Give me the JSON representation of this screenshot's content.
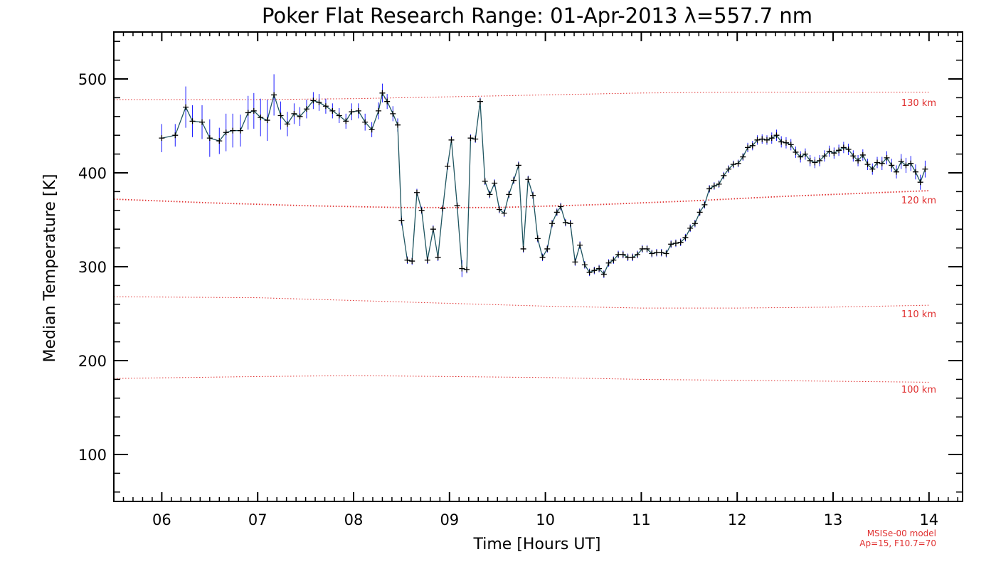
{
  "chart_data": {
    "type": "line",
    "title": "Poker Flat Research Range: 01-Apr-2013 λ=557.7 nm",
    "xlabel": "Time [Hours UT]",
    "ylabel": "Median Temperature [K]",
    "xlim": [
      5.5,
      14.35
    ],
    "ylim": [
      50,
      550
    ],
    "xticks": [
      6,
      7,
      8,
      9,
      10,
      11,
      12,
      13,
      14
    ],
    "xtick_labels": [
      "06",
      "07",
      "08",
      "09",
      "10",
      "11",
      "12",
      "13",
      "14"
    ],
    "yticks": [
      100,
      200,
      300,
      400,
      500
    ],
    "ytick_labels": [
      "100",
      "200",
      "300",
      "400",
      "500"
    ],
    "series": [
      {
        "name": "Median temperature",
        "color": "#000000",
        "error_color": "#1a1aff",
        "x": [
          6.0,
          6.14,
          6.25,
          6.32,
          6.42,
          6.5,
          6.6,
          6.67,
          6.74,
          6.82,
          6.9,
          6.96,
          7.03,
          7.1,
          7.17,
          7.24,
          7.31,
          7.38,
          7.44,
          7.51,
          7.58,
          7.64,
          7.71,
          7.78,
          7.85,
          7.92,
          7.98,
          8.05,
          8.12,
          8.19,
          8.26,
          8.3,
          8.35,
          8.41,
          8.46,
          8.5,
          8.56,
          8.61,
          8.66,
          8.71,
          8.77,
          8.83,
          8.88,
          8.93,
          8.98,
          9.02,
          9.08,
          9.13,
          9.18,
          9.22,
          9.27,
          9.32,
          9.37,
          9.42,
          9.47,
          9.52,
          9.57,
          9.62,
          9.67,
          9.72,
          9.77,
          9.82,
          9.87,
          9.92,
          9.97,
          10.02,
          10.07,
          10.12,
          10.16,
          10.21,
          10.26,
          10.31,
          10.36,
          10.41,
          10.46,
          10.51,
          10.56,
          10.61,
          10.66,
          10.71,
          10.76,
          10.81,
          10.86,
          10.91,
          10.96,
          11.01,
          11.06,
          11.11,
          11.16,
          11.21,
          11.26,
          11.31,
          11.36,
          11.41,
          11.46,
          11.51,
          11.56,
          11.61,
          11.66,
          11.71,
          11.76,
          11.81,
          11.86,
          11.91,
          11.96,
          12.01,
          12.06,
          12.11,
          12.16,
          12.21,
          12.26,
          12.31,
          12.36,
          12.41,
          12.46,
          12.51,
          12.56,
          12.61,
          12.66,
          12.71,
          12.76,
          12.81,
          12.86,
          12.91,
          12.96,
          13.01,
          13.06,
          13.11,
          13.16,
          13.21,
          13.26,
          13.31,
          13.36,
          13.41,
          13.46,
          13.51,
          13.56,
          13.61,
          13.66,
          13.71,
          13.76,
          13.81,
          13.86,
          13.91,
          13.96
        ],
        "y": [
          437,
          440,
          470,
          455,
          454,
          437,
          434,
          443,
          445,
          445,
          464,
          466,
          459,
          456,
          483,
          461,
          452,
          463,
          460,
          468,
          477,
          475,
          471,
          466,
          461,
          455,
          465,
          466,
          454,
          446,
          466,
          485,
          476,
          463,
          451,
          349,
          307,
          306,
          379,
          360,
          307,
          340,
          310,
          362,
          407,
          435,
          365,
          298,
          297,
          437,
          436,
          476,
          391,
          377,
          389,
          361,
          357,
          377,
          392,
          408,
          319,
          393,
          376,
          330,
          310,
          319,
          346,
          358,
          364,
          347,
          346,
          305,
          323,
          302,
          294,
          296,
          298,
          292,
          304,
          307,
          313,
          313,
          310,
          310,
          313,
          319,
          319,
          314,
          315,
          315,
          314,
          324,
          325,
          326,
          331,
          341,
          346,
          358,
          366,
          383,
          386,
          388,
          397,
          404,
          409,
          410,
          417,
          427,
          429,
          435,
          436,
          435,
          437,
          440,
          433,
          432,
          430,
          422,
          417,
          420,
          413,
          411,
          413,
          418,
          423,
          421,
          424,
          427,
          425,
          418,
          413,
          419,
          409,
          404,
          411,
          410,
          416,
          408,
          401,
          412,
          408,
          410,
          401,
          390,
          404
        ],
        "err": [
          15,
          12,
          22,
          17,
          18,
          20,
          14,
          20,
          18,
          17,
          18,
          19,
          20,
          22,
          22,
          15,
          13,
          11,
          10,
          10,
          9,
          9,
          8,
          8,
          8,
          8,
          9,
          8,
          9,
          8,
          9,
          10,
          8,
          8,
          7,
          5,
          4,
          4,
          4,
          4,
          4,
          4,
          4,
          4,
          4,
          4,
          4,
          9,
          4,
          4,
          4,
          4,
          4,
          4,
          4,
          4,
          4,
          4,
          4,
          4,
          4,
          4,
          4,
          4,
          4,
          4,
          4,
          4,
          4,
          4,
          4,
          4,
          4,
          4,
          4,
          4,
          4,
          4,
          4,
          4,
          4,
          4,
          4,
          4,
          4,
          4,
          4,
          4,
          4,
          4,
          4,
          4,
          4,
          4,
          4,
          4,
          4,
          4,
          4,
          4,
          4,
          4,
          4,
          4,
          4,
          4,
          4,
          5,
          5,
          5,
          5,
          5,
          6,
          6,
          6,
          6,
          6,
          6,
          6,
          6,
          6,
          6,
          6,
          6,
          6,
          6,
          6,
          6,
          6,
          6,
          6,
          6,
          6,
          6,
          6,
          7,
          7,
          7,
          7,
          8,
          8,
          8,
          8,
          8,
          9
        ]
      },
      {
        "name": "MSISe-00 130 km",
        "color": "#e03030",
        "label": "130 km",
        "x": [
          5.5,
          7.0,
          8.0,
          9.0,
          10.0,
          11.0,
          12.0,
          13.0,
          14.0
        ],
        "y": [
          478,
          478,
          479,
          481,
          483,
          485,
          486,
          486,
          486
        ]
      },
      {
        "name": "MSISe-00 120 km",
        "color": "#e03030",
        "label": "120 km",
        "x": [
          5.5,
          6.5,
          7.5,
          8.5,
          9.5,
          10.5,
          11.5,
          12.5,
          13.5,
          14.0
        ],
        "y": [
          372,
          368,
          365,
          363,
          363,
          366,
          370,
          375,
          379,
          381
        ]
      },
      {
        "name": "MSISe-00 110 km",
        "color": "#e03030",
        "label": "110 km",
        "x": [
          5.5,
          7.0,
          8.0,
          9.0,
          10.0,
          11.0,
          12.0,
          13.0,
          14.0
        ],
        "y": [
          268,
          267,
          264,
          261,
          258,
          256,
          256,
          257,
          259
        ]
      },
      {
        "name": "MSISe-00 100 km",
        "color": "#e03030",
        "label": "100 km",
        "x": [
          5.5,
          7.0,
          8.0,
          9.0,
          10.0,
          11.0,
          12.0,
          13.0,
          14.0
        ],
        "y": [
          181,
          183,
          184,
          183,
          182,
          180,
          179,
          178,
          177
        ]
      }
    ],
    "annotations": [
      "MSISe-00 model",
      "Ap=15, F10.7=70"
    ]
  }
}
